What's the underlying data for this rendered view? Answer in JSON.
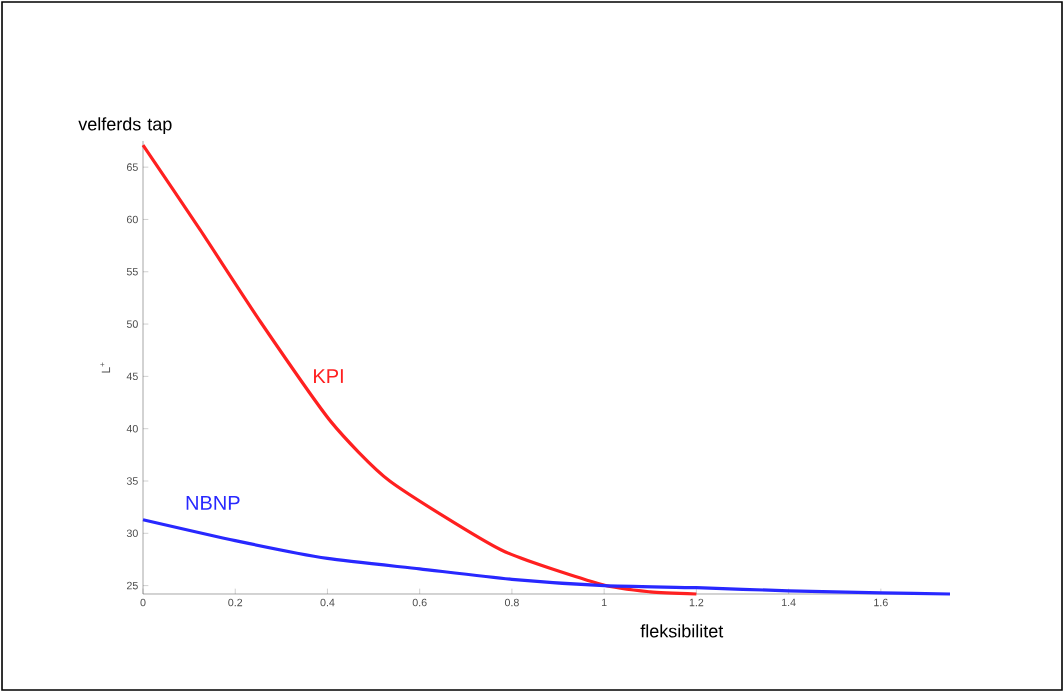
{
  "chart_data": {
    "type": "line",
    "ylabel": "L$^{+}$",
    "xlim": [
      0,
      1.75
    ],
    "ylim": [
      24.2,
      67.5
    ],
    "xticks": [
      0,
      0.2,
      0.4,
      0.6,
      0.8,
      1,
      1.2,
      1.4,
      1.6
    ],
    "yticks": [
      25,
      30,
      35,
      40,
      45,
      50,
      55,
      60,
      65
    ],
    "grid": false,
    "legend": false,
    "marker": "none",
    "line_style": "solid",
    "annotations": [
      "velferds tap",
      "fleksibilitet"
    ],
    "series": [
      {
        "name": "KPI",
        "color": "#ff2020",
        "x": [
          0,
          0.124,
          0.255,
          0.407,
          0.535,
          0.777,
          0.995,
          1.1,
          1.2
        ],
        "values": [
          67.1,
          59.0,
          50.2,
          40.7,
          35.0,
          28.4,
          25.1,
          24.4,
          24.2
        ]
      },
      {
        "name": "NBNP",
        "color": "#2828ff",
        "x": [
          0,
          0.2,
          0.4,
          0.6,
          0.8,
          1,
          1.2,
          1.4,
          1.6,
          1.75
        ],
        "values": [
          31.3,
          29.3,
          27.6,
          26.6,
          25.6,
          25.0,
          24.8,
          24.5,
          24.3,
          24.2
        ]
      }
    ]
  }
}
